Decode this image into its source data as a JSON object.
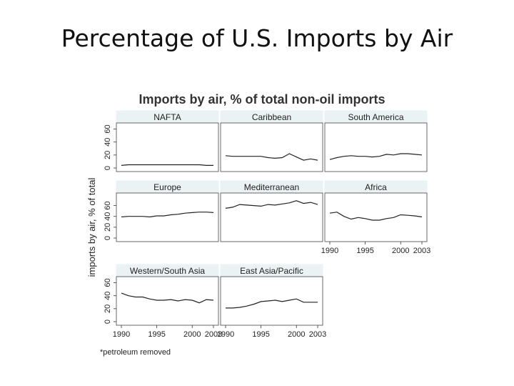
{
  "slide": {
    "title": "Percentage of U.S. Imports by Air"
  },
  "chart_data": {
    "type": "line",
    "title": "Imports by air, % of total non-oil imports",
    "ylabel": "imports by air, % of total",
    "note": "*petroleum removed",
    "x_ticks": [
      1990,
      1995,
      2000,
      2003
    ],
    "xlim": [
      1990,
      2003
    ],
    "y_ticks": [
      0,
      20,
      40,
      60
    ],
    "x": [
      1990,
      1991,
      1992,
      1993,
      1994,
      1995,
      1996,
      1997,
      1998,
      1999,
      2000,
      2001,
      2002,
      2003
    ],
    "panels": [
      {
        "name": "NAFTA",
        "ylim": [
          0,
          65
        ],
        "values": [
          4,
          5,
          5,
          5,
          5,
          5,
          5,
          5,
          5,
          5,
          5,
          5,
          4,
          4
        ]
      },
      {
        "name": "Caribbean",
        "ylim": [
          0,
          65
        ],
        "values": [
          19,
          18,
          18,
          18,
          18,
          18,
          16,
          15,
          16,
          22,
          17,
          12,
          14,
          12
        ]
      },
      {
        "name": "South America",
        "ylim": [
          0,
          65
        ],
        "values": [
          13,
          16,
          18,
          19,
          18,
          18,
          17,
          18,
          21,
          20,
          22,
          22,
          21,
          20
        ]
      },
      {
        "name": "Europe",
        "ylim": [
          0,
          78
        ],
        "values": [
          39,
          40,
          40,
          40,
          39,
          41,
          41,
          43,
          44,
          46,
          47,
          48,
          48,
          47
        ]
      },
      {
        "name": "Mediterranean",
        "ylim": [
          0,
          78
        ],
        "values": [
          55,
          57,
          62,
          61,
          60,
          59,
          62,
          61,
          63,
          65,
          69,
          64,
          66,
          62
        ]
      },
      {
        "name": "Africa",
        "ylim": [
          0,
          78
        ],
        "values": [
          46,
          48,
          40,
          35,
          38,
          36,
          33,
          33,
          36,
          38,
          43,
          42,
          41,
          39
        ]
      },
      {
        "name": "Western/South Asia",
        "ylim": [
          0,
          65
        ],
        "values": [
          44,
          40,
          38,
          38,
          35,
          33,
          33,
          34,
          32,
          34,
          33,
          29,
          34,
          33
        ]
      },
      {
        "name": "East Asia/Pacific",
        "ylim": [
          0,
          65
        ],
        "values": [
          21,
          21,
          22,
          24,
          27,
          31,
          32,
          33,
          31,
          33,
          35,
          30,
          30,
          30
        ]
      }
    ],
    "grid": false
  }
}
